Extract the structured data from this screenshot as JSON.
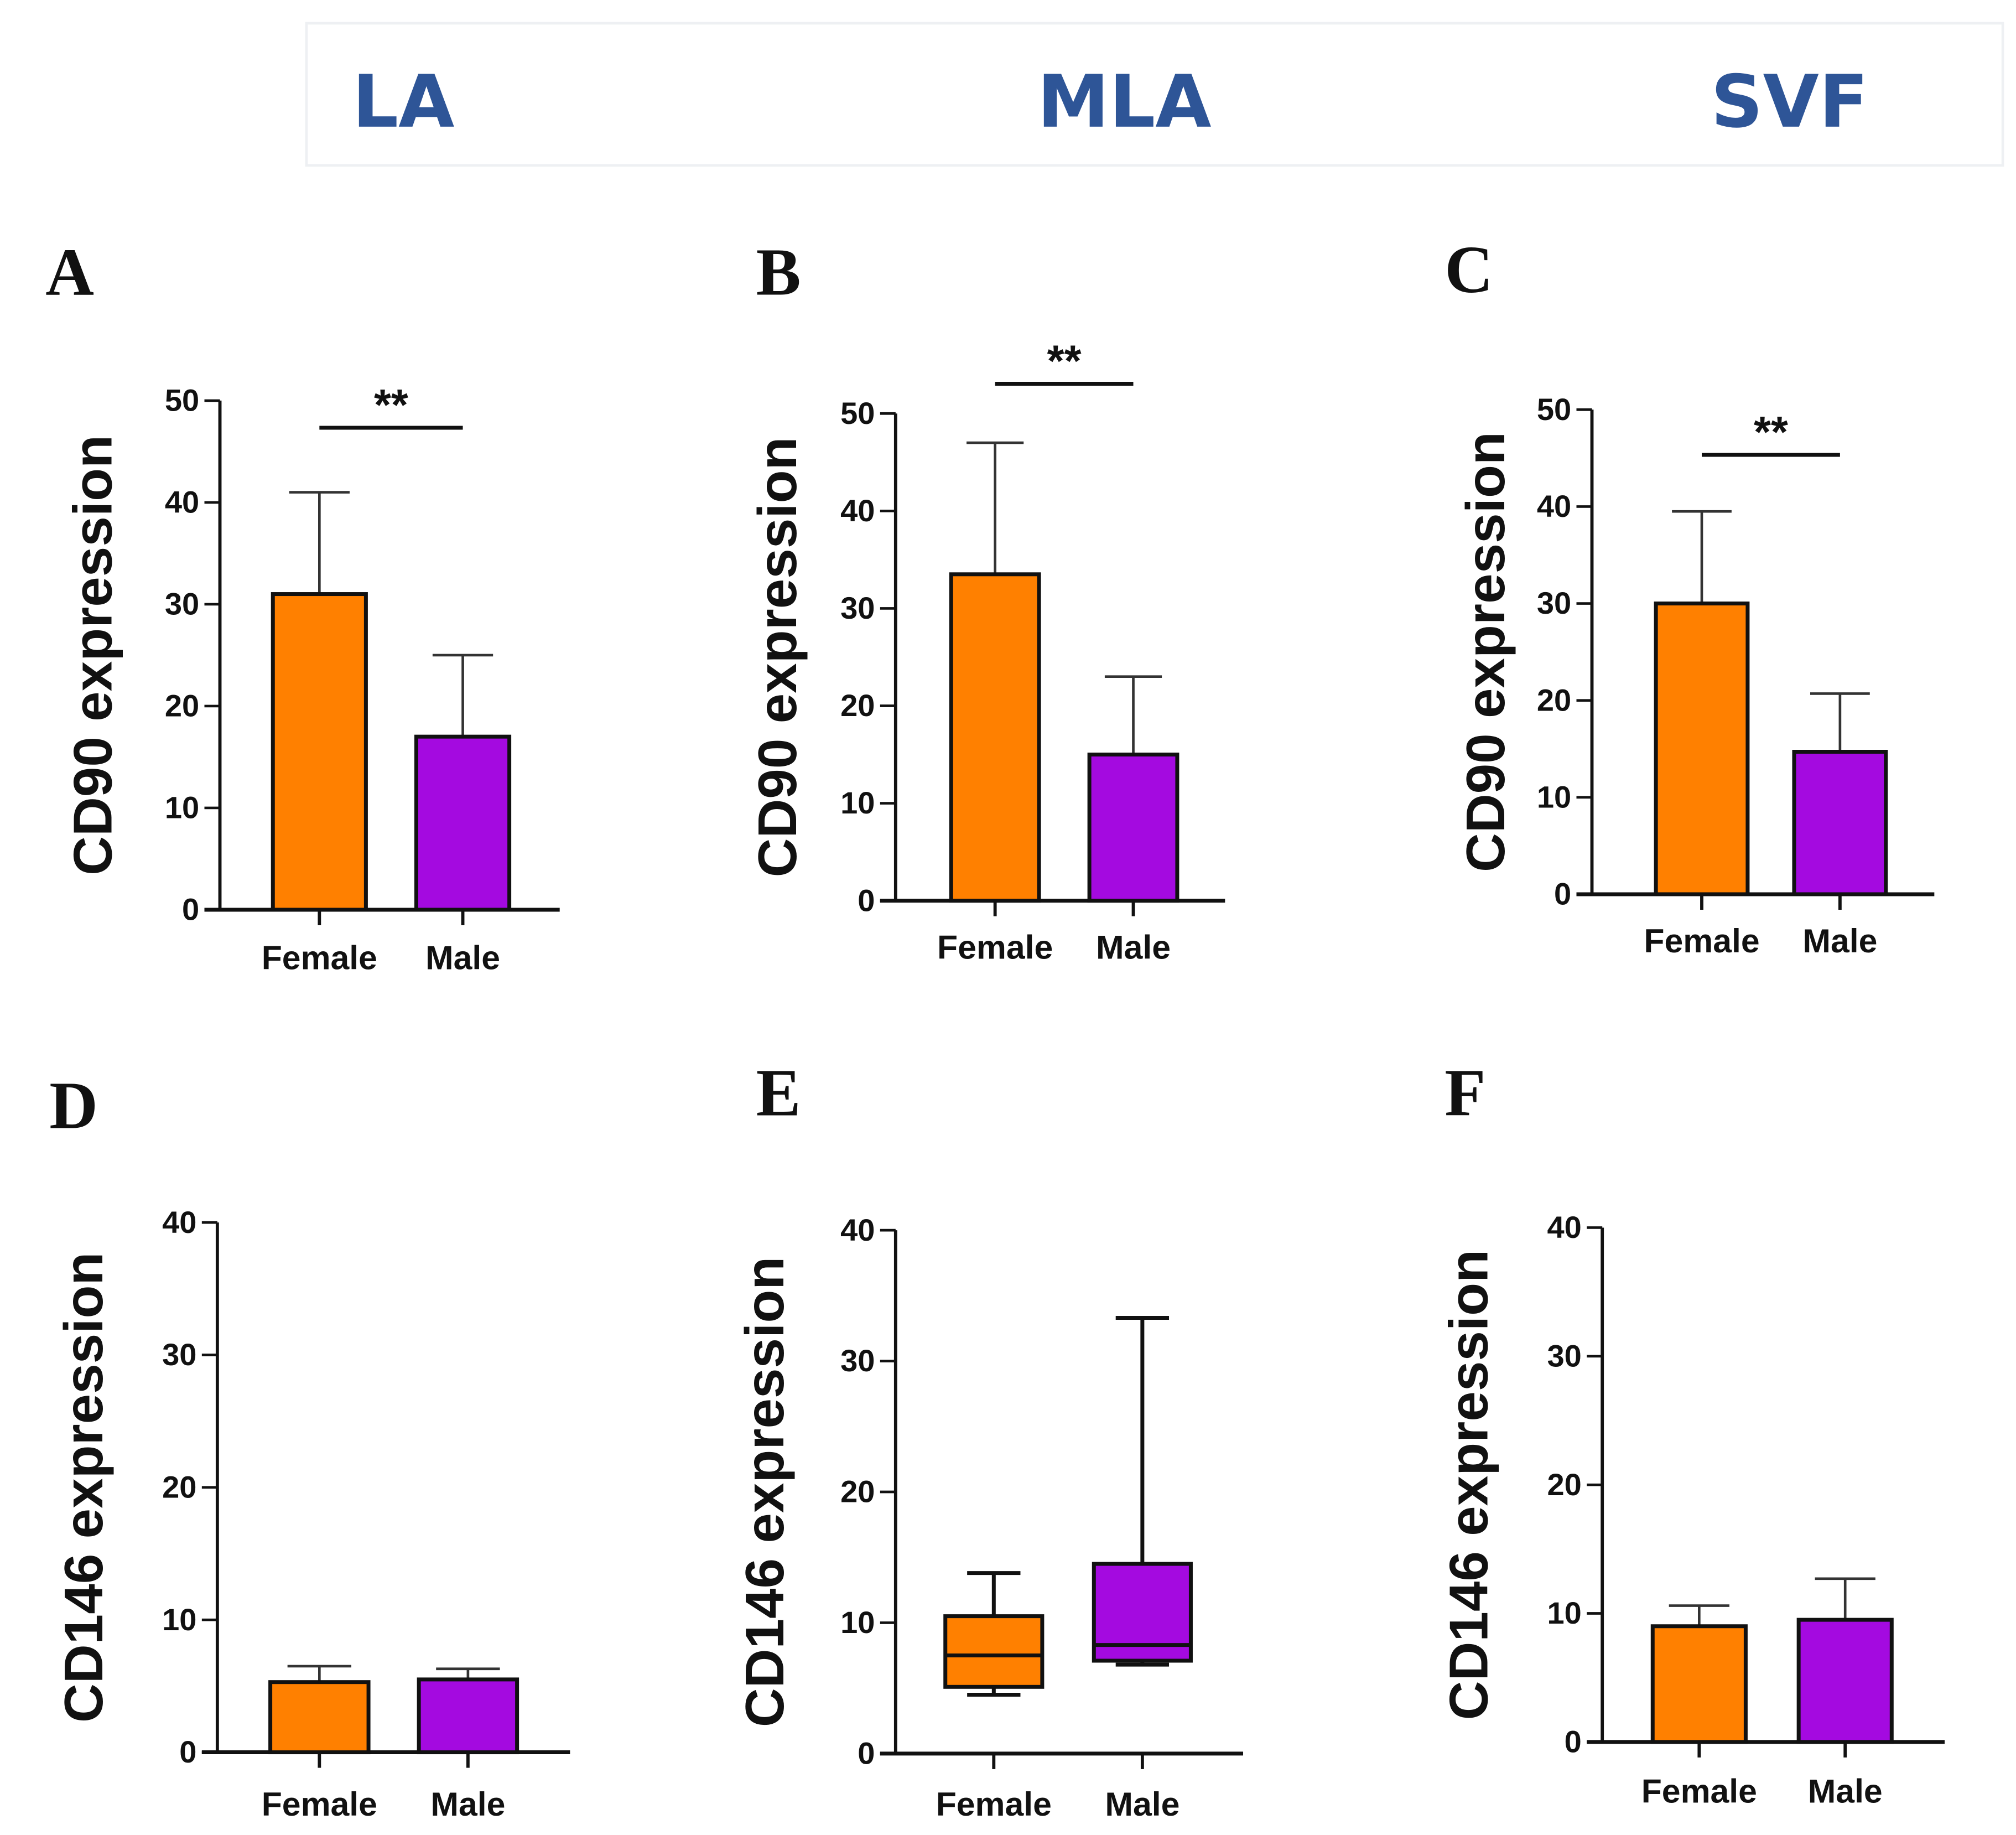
{
  "headers": [
    "LA",
    "MLA",
    "SVF"
  ],
  "colors": {
    "header": "#2e5597",
    "female": "#ff8000",
    "male": "#a40ae0"
  },
  "chart_data": [
    {
      "panel": "A",
      "type": "bar",
      "ylabel": "CD90 expression",
      "categories": [
        "Female",
        "Male"
      ],
      "ylim": [
        0,
        50
      ],
      "yticks": [
        0,
        10,
        20,
        30,
        40,
        50
      ],
      "values": [
        31,
        17
      ],
      "error_upper": [
        41,
        25
      ],
      "significance": "**"
    },
    {
      "panel": "B",
      "type": "bar",
      "ylabel": "CD90 expression",
      "categories": [
        "Female",
        "Male"
      ],
      "ylim": [
        0,
        50
      ],
      "yticks": [
        0,
        10,
        20,
        30,
        40,
        50
      ],
      "values": [
        33.5,
        15
      ],
      "error_upper": [
        47,
        23
      ],
      "significance": "**"
    },
    {
      "panel": "C",
      "type": "bar",
      "ylabel": "CD90 expression",
      "categories": [
        "Female",
        "Male"
      ],
      "ylim": [
        0,
        50
      ],
      "yticks": [
        0,
        10,
        20,
        30,
        40,
        50
      ],
      "values": [
        30,
        14.7
      ],
      "error_upper": [
        39.5,
        20.7
      ],
      "significance": "**"
    },
    {
      "panel": "D",
      "type": "bar",
      "ylabel": "CD146 expression",
      "categories": [
        "Female",
        "Male"
      ],
      "ylim": [
        0,
        40
      ],
      "yticks": [
        0,
        10,
        20,
        30,
        40
      ],
      "values": [
        5.3,
        5.5
      ],
      "error_upper": [
        6.5,
        6.3
      ],
      "significance": ""
    },
    {
      "panel": "E",
      "type": "box",
      "ylabel": "CD146 expression",
      "categories": [
        "Female",
        "Male"
      ],
      "ylim": [
        0,
        40
      ],
      "yticks": [
        0,
        10,
        20,
        30,
        40
      ],
      "boxes": [
        {
          "min": 4.5,
          "q1": 5.1,
          "median": 7.5,
          "q3": 10.5,
          "max": 13.8
        },
        {
          "min": 6.8,
          "q1": 7.1,
          "median": 8.3,
          "q3": 14.5,
          "max": 33.3
        }
      ],
      "significance": ""
    },
    {
      "panel": "F",
      "type": "bar",
      "ylabel": "CD146 expression",
      "categories": [
        "Female",
        "Male"
      ],
      "ylim": [
        0,
        40
      ],
      "yticks": [
        0,
        10,
        20,
        30,
        40
      ],
      "values": [
        9,
        9.5
      ],
      "error_upper": [
        10.6,
        12.7
      ],
      "significance": ""
    }
  ]
}
